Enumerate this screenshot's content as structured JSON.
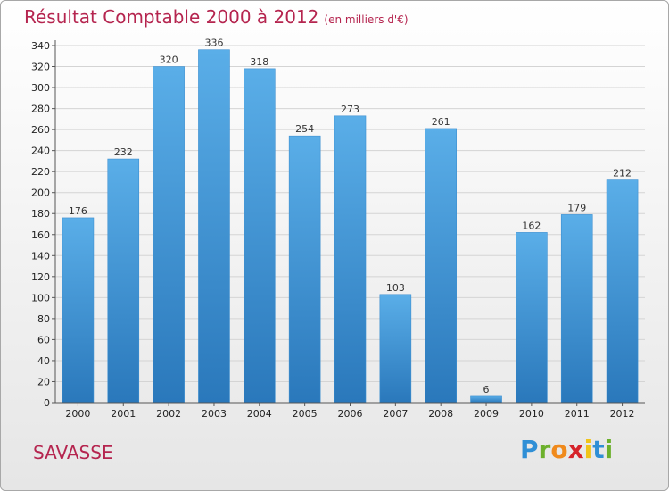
{
  "header": {
    "title": "Résultat Comptable 2000 à 2012",
    "unit": "(en milliers d'€)"
  },
  "commune": "SAVASSE",
  "logo": {
    "text": "Proxiti",
    "letters": [
      "P",
      "r",
      "o",
      "x",
      "i",
      "t",
      "i"
    ],
    "colors": [
      "#2f8fd6",
      "#6cb02c",
      "#f08a1c",
      "#d6232a",
      "#f0c419",
      "#2f8fd6",
      "#6cb02c"
    ]
  },
  "colors": {
    "bar_top": "#5aaee8",
    "bar_bottom": "#2a78bb",
    "title": "#b5254f",
    "grid": "#d4d4d4",
    "axis": "#555555"
  },
  "chart_data": {
    "type": "bar",
    "title": "Résultat Comptable 2000 à 2012",
    "subtitle": "(en milliers d'€)",
    "xlabel": "",
    "ylabel": "",
    "categories": [
      "2000",
      "2001",
      "2002",
      "2003",
      "2004",
      "2005",
      "2006",
      "2007",
      "2008",
      "2009",
      "2010",
      "2011",
      "2012"
    ],
    "values": [
      176,
      232,
      320,
      336,
      318,
      254,
      273,
      103,
      261,
      6,
      162,
      179,
      212
    ],
    "ylim": [
      0,
      340
    ],
    "yticks": [
      0,
      20,
      40,
      60,
      80,
      100,
      120,
      140,
      160,
      180,
      200,
      220,
      240,
      260,
      280,
      300,
      320,
      340
    ],
    "grid": true
  }
}
